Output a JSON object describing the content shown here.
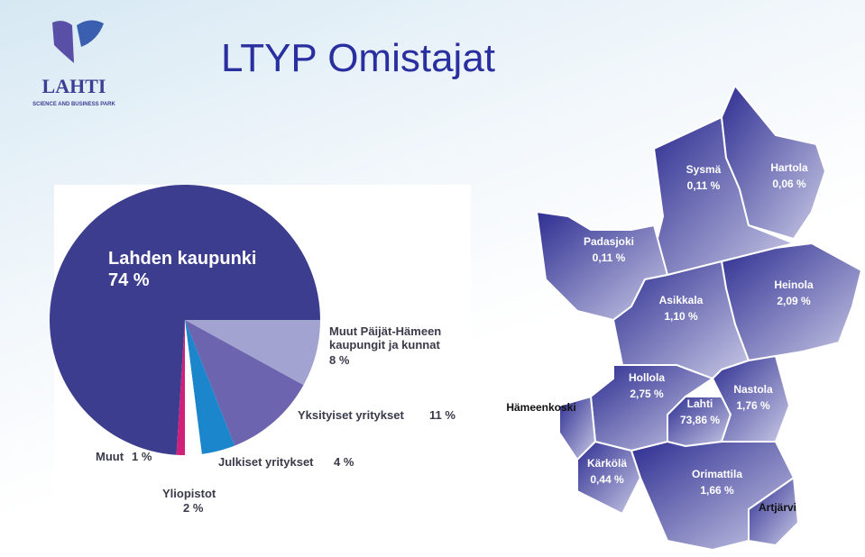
{
  "logo": {
    "name": "LAHTI",
    "tagline": "SCIENCE AND BUSINESS PARK"
  },
  "title": "LTYP Omistajat",
  "chart_data": {
    "type": "pie",
    "categories": [
      "Muut Päijät-Hämeen kaupungit ja kunnat",
      "Yksityiset yritykset",
      "Julkiset yritykset",
      "Yliopistot",
      "Muut",
      "Lahden kaupunki"
    ],
    "values": [
      8,
      11,
      4,
      2,
      1,
      74
    ],
    "value_labels": [
      "8 %",
      "11 %",
      "4 %",
      "2 %",
      "1 %",
      "74 %"
    ],
    "colors": [
      "#a3a3d2",
      "#6c64ae",
      "#1c86cc",
      "#ffffff",
      "#d0207a",
      "#3d3d8f"
    ]
  },
  "map": {
    "regions": [
      {
        "name": "Sysmä",
        "share": "0,11 %"
      },
      {
        "name": "Hartola",
        "share": "0,06 %"
      },
      {
        "name": "Padasjoki",
        "share": "0,11 %"
      },
      {
        "name": "Heinola",
        "share": "2,09 %"
      },
      {
        "name": "Asikkala",
        "share": "1,10 %"
      },
      {
        "name": "Hollola",
        "share": "2,75 %"
      },
      {
        "name": "Lahti",
        "share": "73,86 %"
      },
      {
        "name": "Nastola",
        "share": "1,76 %"
      },
      {
        "name": "Hämeenkoski"
      },
      {
        "name": "Kärkölä",
        "share": "0,44 %"
      },
      {
        "name": "Orimattila",
        "share": "1,66 %"
      },
      {
        "name": "Artjärvi"
      }
    ]
  }
}
